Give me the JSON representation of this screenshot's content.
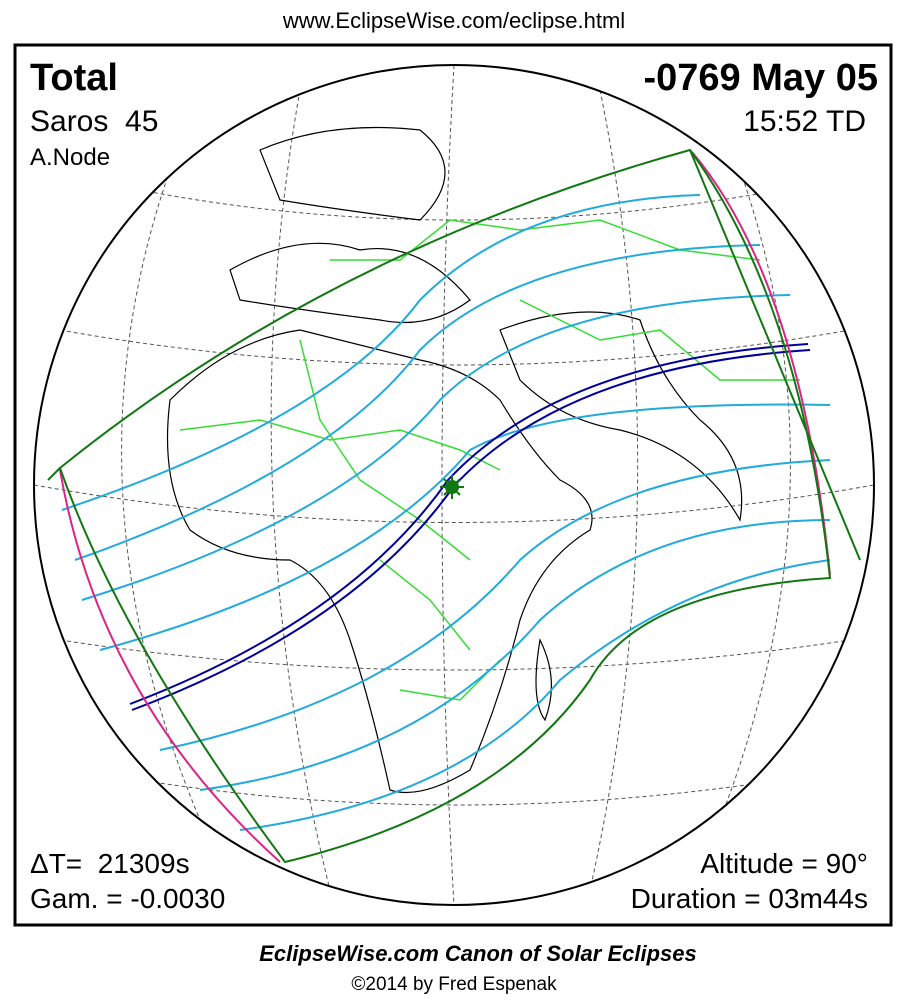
{
  "header": {
    "url": "www.EclipseWise.com/eclipse.html"
  },
  "panel": {
    "type": "Total",
    "date": "-0769 May 05",
    "saros": "Saros  45",
    "time": "15:52 TD",
    "node": "A.Node",
    "delta_t": "ΔT=  21309s",
    "gamma": "Gam. = -0.0030",
    "altitude": "Altitude = 90°",
    "duration": "Duration = 03m44s"
  },
  "footer": {
    "title": "EclipseWise.com Canon of Solar Eclipses",
    "copyright": "©2014 by Fred Espenak"
  }
}
